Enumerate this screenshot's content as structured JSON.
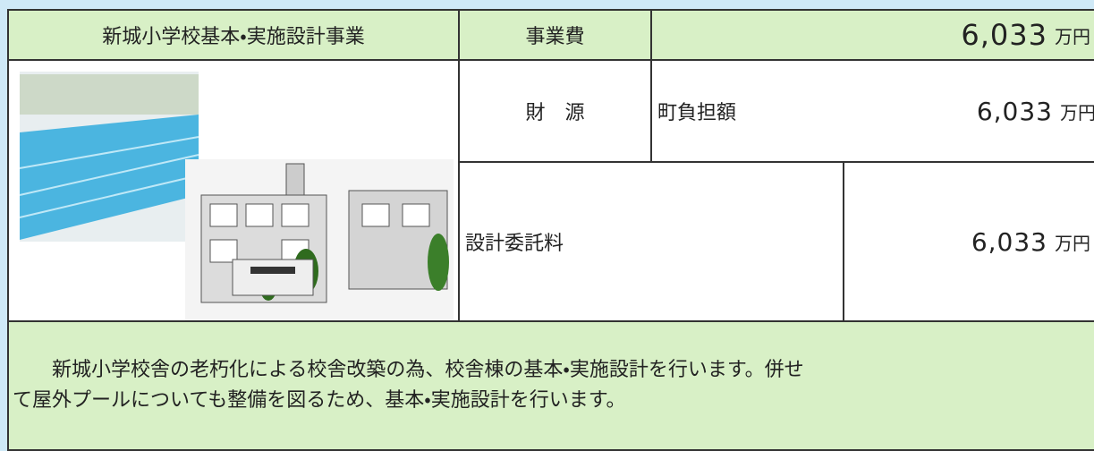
{
  "header": {
    "title": "新城小学校基本・実施設計事業",
    "cost_label": "事業費",
    "cost_value": "6,033",
    "cost_unit": "万円"
  },
  "funding": {
    "label": "財　源",
    "source": "町負担額",
    "value": "6,033",
    "unit": "万円"
  },
  "item": {
    "label": "設計委託料",
    "value": "6,033",
    "unit": "万円"
  },
  "description": [
    "新城小学校舎の老朽化による校舎改築の為、校舎棟の基本・実施設計を行います。併せ",
    "て屋外プールについても整備を図るため、基本・実施設計を行います。"
  ]
}
